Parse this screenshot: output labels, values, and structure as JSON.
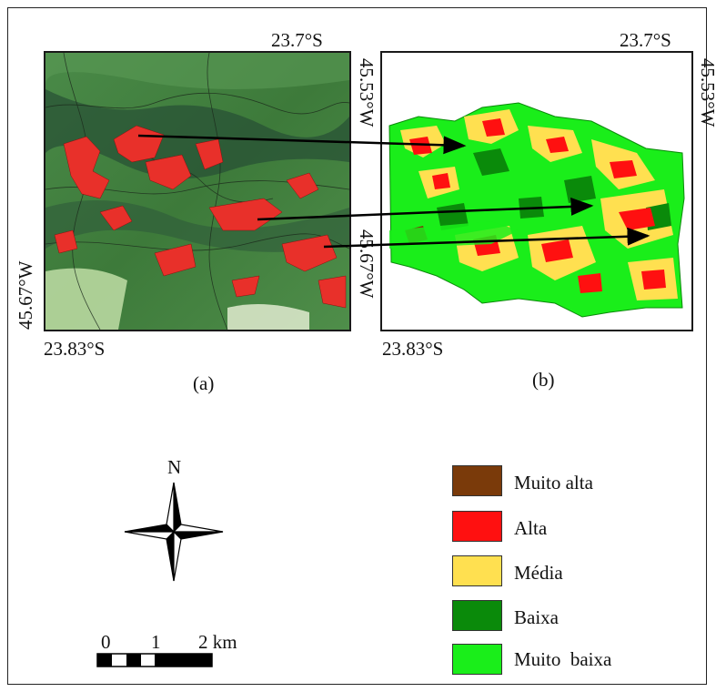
{
  "panel_a": {
    "caption": "(a)",
    "coord_top_right": "23.7°S",
    "coord_bottom_left": "23.83°S",
    "coord_left_vertical": "45.67°W",
    "coord_right_vertical_top": "45.53°W",
    "coord_right_vertical_bottom": "45.67°W"
  },
  "panel_b": {
    "caption": "(b)",
    "coord_top_right": "23.7°S",
    "coord_bottom_left": "23.83°S",
    "coord_right_vertical": "45.53°W"
  },
  "north_arrow": {
    "label": "N"
  },
  "scale_bar": {
    "tick_0": "0",
    "tick_1": "1",
    "tick_2": "2 km"
  },
  "legend": {
    "items": [
      {
        "label": "Muito alta",
        "color": "#7a3a0a"
      },
      {
        "label": "Alta",
        "color": "#ff1010"
      },
      {
        "label": "Média",
        "color": "#ffe050"
      },
      {
        "label": "Baixa",
        "color": "#0a8a0a"
      },
      {
        "label": "Muito  baixa",
        "color": "#1aee1a"
      }
    ]
  },
  "colors": {
    "satellite_green": "#3f7a3c",
    "highlight_red": "#e8302a",
    "arrow": "#000000"
  }
}
